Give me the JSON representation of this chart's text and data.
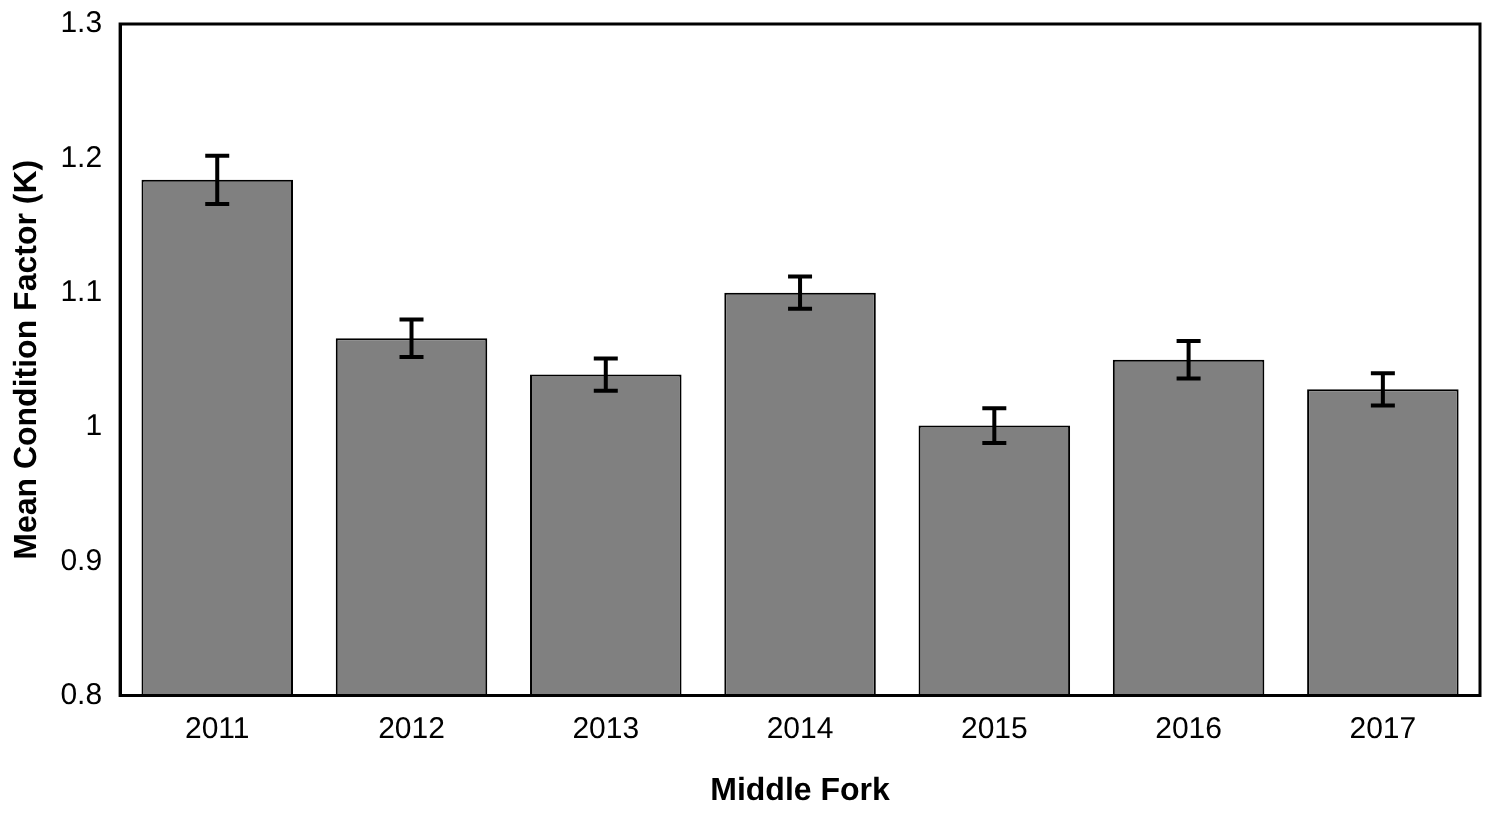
{
  "chart_data": {
    "type": "bar",
    "xlabel": "Middle Fork",
    "ylabel": "Mean Condition Factor (K)",
    "categories": [
      "2011",
      "2012",
      "2013",
      "2014",
      "2015",
      "2016",
      "2017"
    ],
    "values": [
      1.184,
      1.066,
      1.039,
      1.1,
      1.001,
      1.05,
      1.028
    ],
    "errors": [
      0.018,
      0.014,
      0.012,
      0.012,
      0.013,
      0.014,
      0.012
    ],
    "color": "#808080",
    "ylim": [
      0.8,
      1.3
    ],
    "yticks": [
      0.8,
      0.9,
      {
        "value": 1,
        "label": "1"
      },
      1.1,
      1.2,
      1.3
    ],
    "grid": false,
    "legend": false
  }
}
